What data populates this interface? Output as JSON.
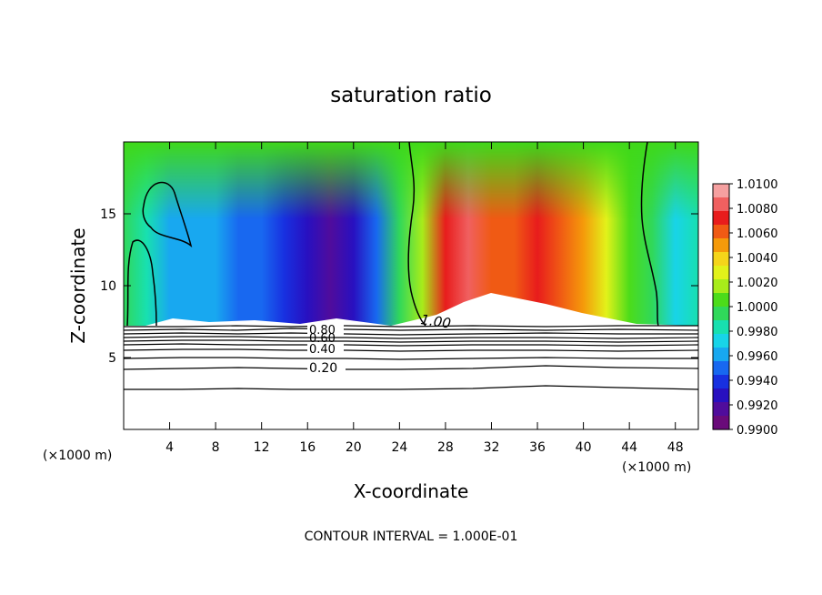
{
  "chart_data": {
    "type": "heatmap",
    "title": "saturation ratio",
    "xlabel": "X-coordinate",
    "ylabel": "Z-coordinate",
    "x_unit_left": "(×1000 m)",
    "x_unit_right": "(×1000 m)",
    "footer": "CONTOUR INTERVAL = 1.000E-01",
    "xlim": [
      0,
      50
    ],
    "ylim": [
      0,
      20
    ],
    "x_ticks": [
      4,
      8,
      12,
      16,
      20,
      24,
      28,
      32,
      36,
      40,
      44,
      48
    ],
    "y_ticks": [
      5,
      10,
      15
    ],
    "colorbar": {
      "ticks": [
        "1.0100",
        "1.0080",
        "1.0060",
        "1.0040",
        "1.0020",
        "1.0000",
        "0.9980",
        "0.9960",
        "0.9940",
        "0.9920",
        "0.9900"
      ],
      "range": [
        0.99,
        1.01
      ],
      "colors": [
        "#f5a0a0",
        "#f06060",
        "#e81c1c",
        "#f05a14",
        "#f59a0a",
        "#f5d51a",
        "#e2f21a",
        "#a8ec1a",
        "#4cdc1a",
        "#30d85a",
        "#18e0b0",
        "#18d4e8",
        "#18a8f0",
        "#1868f0",
        "#1830e0",
        "#2810c0",
        "#500c9c",
        "#6a0a7a"
      ]
    },
    "contour_labels": [
      "1.00",
      "0.80",
      "0.60",
      "0.40",
      "0.20"
    ],
    "profile_x": [
      0,
      2,
      4,
      6,
      8,
      10,
      12,
      14,
      16,
      18,
      20,
      22,
      24,
      26,
      28,
      30,
      32,
      34,
      36,
      38,
      40,
      42,
      44,
      46,
      48,
      50
    ],
    "profile_value": [
      0.9992,
      0.9985,
      0.9958,
      0.9966,
      0.9958,
      0.9946,
      0.995,
      0.9942,
      0.9926,
      0.9912,
      0.9928,
      0.9952,
      0.9992,
      1.0012,
      1.0072,
      1.0082,
      1.006,
      1.0066,
      1.007,
      1.0058,
      1.0052,
      1.003,
      1.0004,
      0.999,
      0.997,
      0.9984
    ]
  }
}
